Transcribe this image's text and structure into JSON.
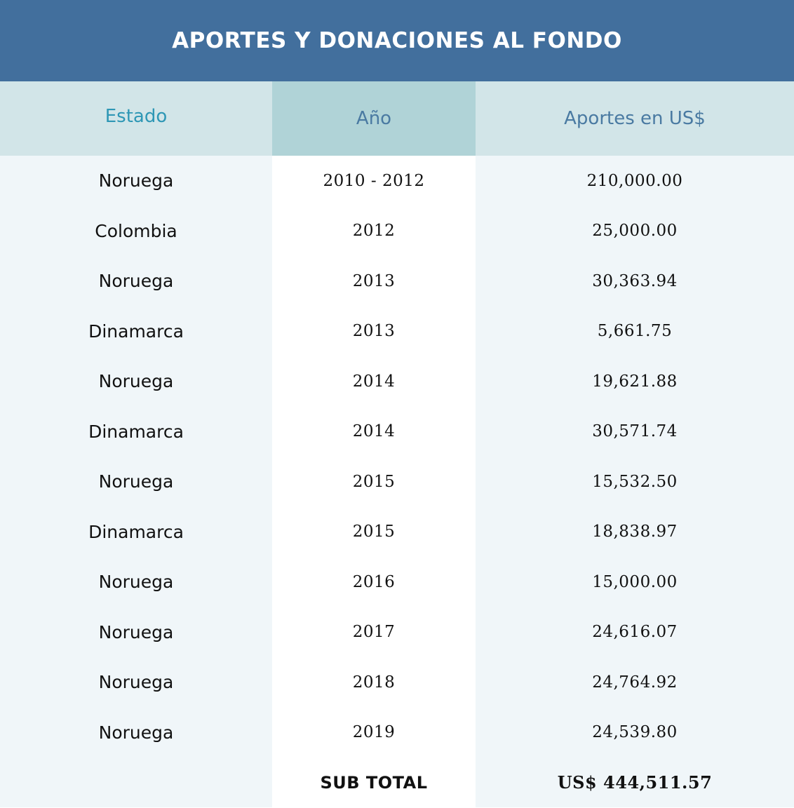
{
  "title": "APORTES Y DONACIONES AL FONDO",
  "headers": {
    "estado": "Estado",
    "anio": "Año",
    "aportes": "Aportes en US$"
  },
  "rows": [
    {
      "estado": "Noruega",
      "anio": "2010 - 2012",
      "aporte": "210,000.00"
    },
    {
      "estado": "Colombia",
      "anio": "2012",
      "aporte": "25,000.00"
    },
    {
      "estado": "Noruega",
      "anio": "2013",
      "aporte": "30,363.94"
    },
    {
      "estado": "Dinamarca",
      "anio": "2013",
      "aporte": "5,661.75"
    },
    {
      "estado": "Noruega",
      "anio": "2014",
      "aporte": "19,621.88"
    },
    {
      "estado": "Dinamarca",
      "anio": "2014",
      "aporte": "30,571.74"
    },
    {
      "estado": "Noruega",
      "anio": "2015",
      "aporte": "15,532.50"
    },
    {
      "estado": "Dinamarca",
      "anio": "2015",
      "aporte": "18,838.97"
    },
    {
      "estado": "Noruega",
      "anio": "2016",
      "aporte": "15,000.00"
    },
    {
      "estado": "Noruega",
      "anio": "2017",
      "aporte": "24,616.07"
    },
    {
      "estado": "Noruega",
      "anio": "2018",
      "aporte": "24,764.92"
    },
    {
      "estado": "Noruega",
      "anio": "2019",
      "aporte": "24,539.80"
    }
  ],
  "total": {
    "label": "SUB TOTAL",
    "value": "US$ 444,511.57"
  },
  "colors": {
    "title_bar": "#426f9d",
    "header_light": "#d2e5e8",
    "header_mid": "#b0d3d7",
    "body_bg": "#f0f6f9",
    "estado_header_text": "#2e97b5",
    "header_text": "#4a7aa2"
  }
}
